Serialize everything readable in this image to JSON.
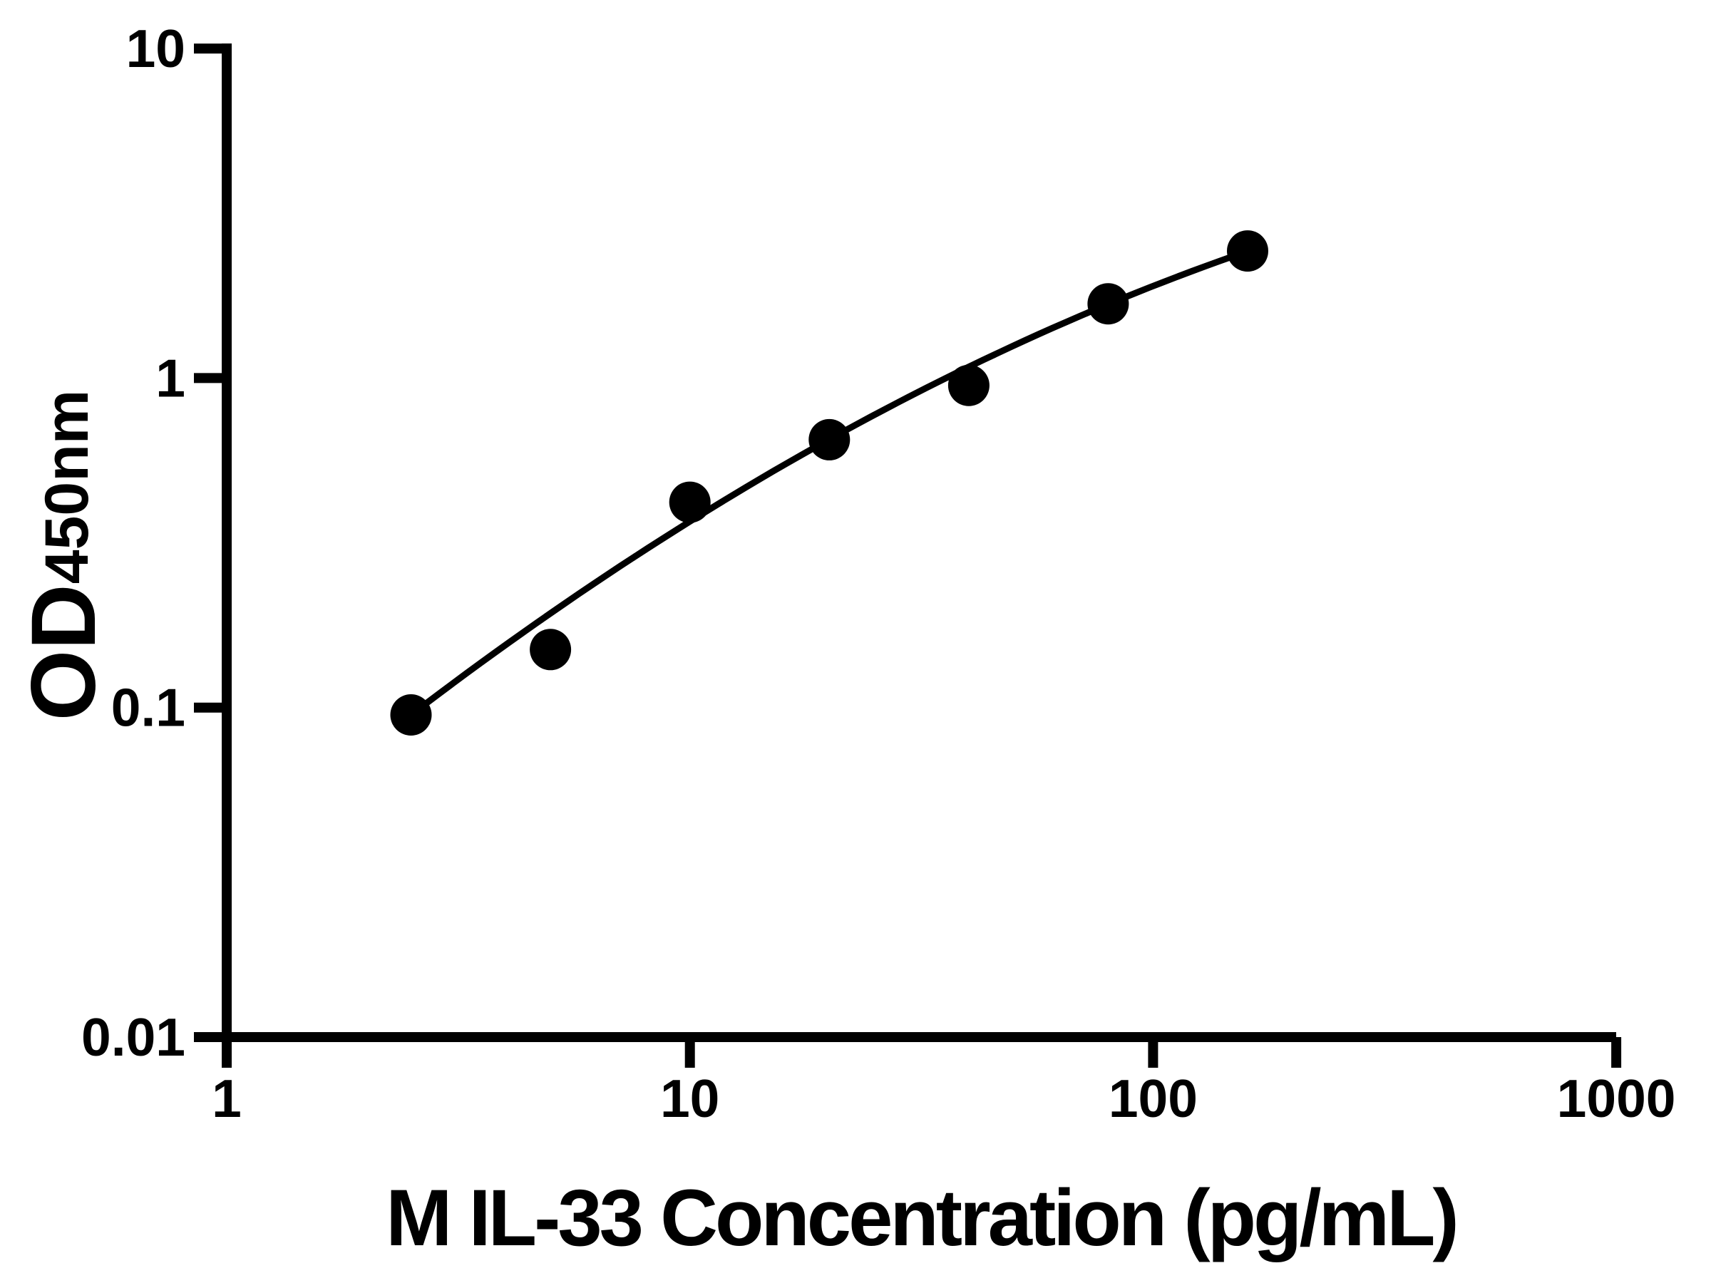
{
  "page": {
    "background_color": "#ffffff",
    "foreground_color": "#000000"
  },
  "chart_data": {
    "type": "scatter",
    "title": "",
    "xlabel": "M IL-33 Concentration (pg/mL)",
    "ylabel_main": "OD",
    "ylabel_sub": "450nm",
    "x_scale": "log",
    "y_scale": "log",
    "xlim": [
      1,
      1000
    ],
    "ylim": [
      0.01,
      10
    ],
    "x_ticks": [
      1,
      10,
      100,
      1000
    ],
    "x_tick_labels": [
      "1",
      "10",
      "100",
      "1000"
    ],
    "y_ticks": [
      10,
      1,
      0.1,
      0.01
    ],
    "y_tick_labels": [
      "10",
      "1",
      "0.1",
      "0.01"
    ],
    "grid": false,
    "legend": false,
    "series": [
      {
        "name": "standard-curve-points",
        "marker": "circle",
        "color": "#000000",
        "x": [
          2.5,
          5,
          10,
          20,
          40,
          80,
          160
        ],
        "y": [
          0.095,
          0.15,
          0.42,
          0.65,
          0.95,
          1.68,
          2.43
        ]
      }
    ],
    "fit_curve": {
      "description": "4PL-style fitted standard curve, approximated as quadratic in log10-log10 space: v = a + b*u + c*u^2, u = log10(conc), v = log10(OD)",
      "coeffs": {
        "a": -1.4748,
        "b": 1.2022,
        "c": -0.1626
      },
      "x_domain": [
        2.5,
        160
      ],
      "color": "#000000"
    }
  }
}
